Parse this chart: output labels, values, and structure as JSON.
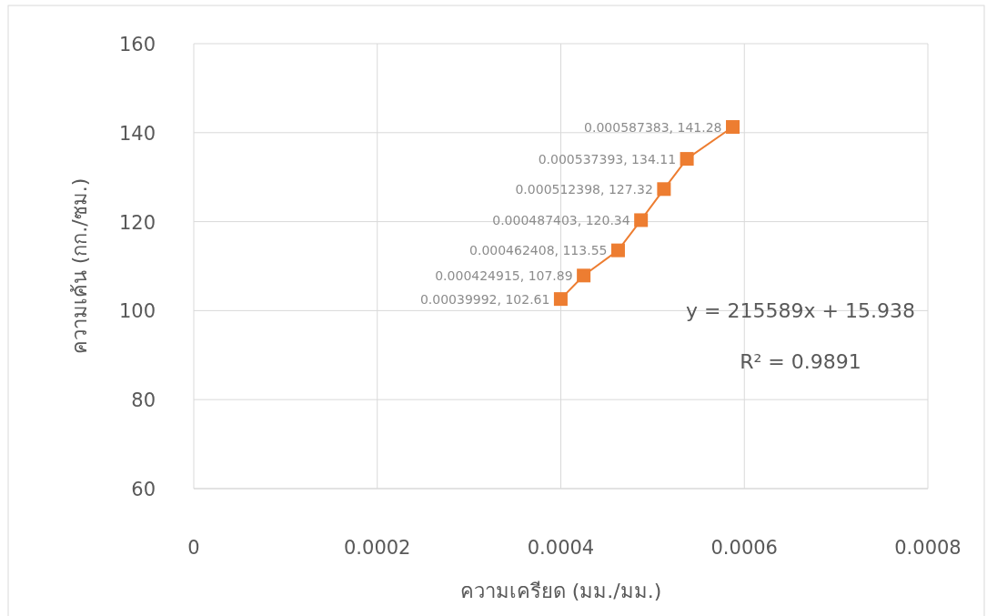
{
  "chart_data": {
    "type": "line",
    "xlabel": "ความเครียด (มม./มม.)",
    "ylabel": "ความเค้น (กก./ซม.)",
    "x": [
      0.00039992,
      0.000424915,
      0.000462408,
      0.000487403,
      0.000512398,
      0.000537393,
      0.000587383
    ],
    "series": [
      {
        "color": "#ed7d31",
        "values": [
          102.61,
          107.89,
          113.55,
          120.34,
          127.32,
          134.11,
          141.28
        ],
        "value_labels": [
          "0.00039992, 102.61",
          "0.000424915, 107.89",
          "0.000462408, 113.55",
          "0.000487403, 120.34",
          "0.000512398, 127.32",
          "0.000537393, 134.11",
          "0.000587383, 141.28"
        ]
      }
    ],
    "marker": "square",
    "line_style": "solid",
    "grid": true,
    "xlim": [
      0,
      0.0008
    ],
    "xticks": [
      0,
      0.0002,
      0.0004,
      0.0006,
      0.0008
    ],
    "ylim": [
      60,
      160
    ],
    "yticks": [
      60,
      80,
      100,
      120,
      140,
      160
    ],
    "annotations": [
      "y = 215589x + 15.938",
      "R² = 0.9891"
    ]
  }
}
